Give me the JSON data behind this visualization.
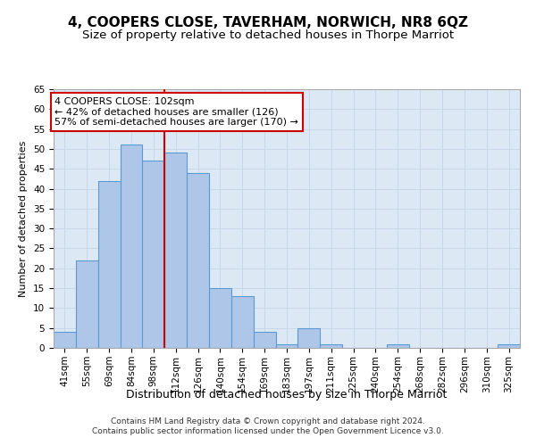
{
  "title": "4, COOPERS CLOSE, TAVERHAM, NORWICH, NR8 6QZ",
  "subtitle": "Size of property relative to detached houses in Thorpe Marriot",
  "xlabel": "Distribution of detached houses by size in Thorpe Marriot",
  "ylabel": "Number of detached properties",
  "categories": [
    "41sqm",
    "55sqm",
    "69sqm",
    "84sqm",
    "98sqm",
    "112sqm",
    "126sqm",
    "140sqm",
    "154sqm",
    "169sqm",
    "183sqm",
    "197sqm",
    "211sqm",
    "225sqm",
    "240sqm",
    "254sqm",
    "268sqm",
    "282sqm",
    "296sqm",
    "310sqm",
    "325sqm"
  ],
  "values": [
    4,
    22,
    42,
    51,
    47,
    49,
    44,
    15,
    13,
    4,
    1,
    5,
    1,
    0,
    0,
    1,
    0,
    0,
    0,
    0,
    1
  ],
  "bar_color": "#aec6e8",
  "bar_edgecolor": "#5b9bd5",
  "vline_x": 5.0,
  "vline_color": "#cc0000",
  "annotation_text": "4 COOPERS CLOSE: 102sqm\n← 42% of detached houses are smaller (126)\n57% of semi-detached houses are larger (170) →",
  "annotation_box_color": "#ffffff",
  "annotation_box_edgecolor": "#cc0000",
  "ylim": [
    0,
    65
  ],
  "yticks": [
    0,
    5,
    10,
    15,
    20,
    25,
    30,
    35,
    40,
    45,
    50,
    55,
    60,
    65
  ],
  "grid_color": "#c8d8e8",
  "background_color": "#dce9f5",
  "footer_line1": "Contains HM Land Registry data © Crown copyright and database right 2024.",
  "footer_line2": "Contains public sector information licensed under the Open Government Licence v3.0.",
  "title_fontsize": 11,
  "subtitle_fontsize": 9.5,
  "xlabel_fontsize": 9,
  "ylabel_fontsize": 8,
  "tick_fontsize": 7.5,
  "footer_fontsize": 6.5,
  "annotation_fontsize": 8
}
